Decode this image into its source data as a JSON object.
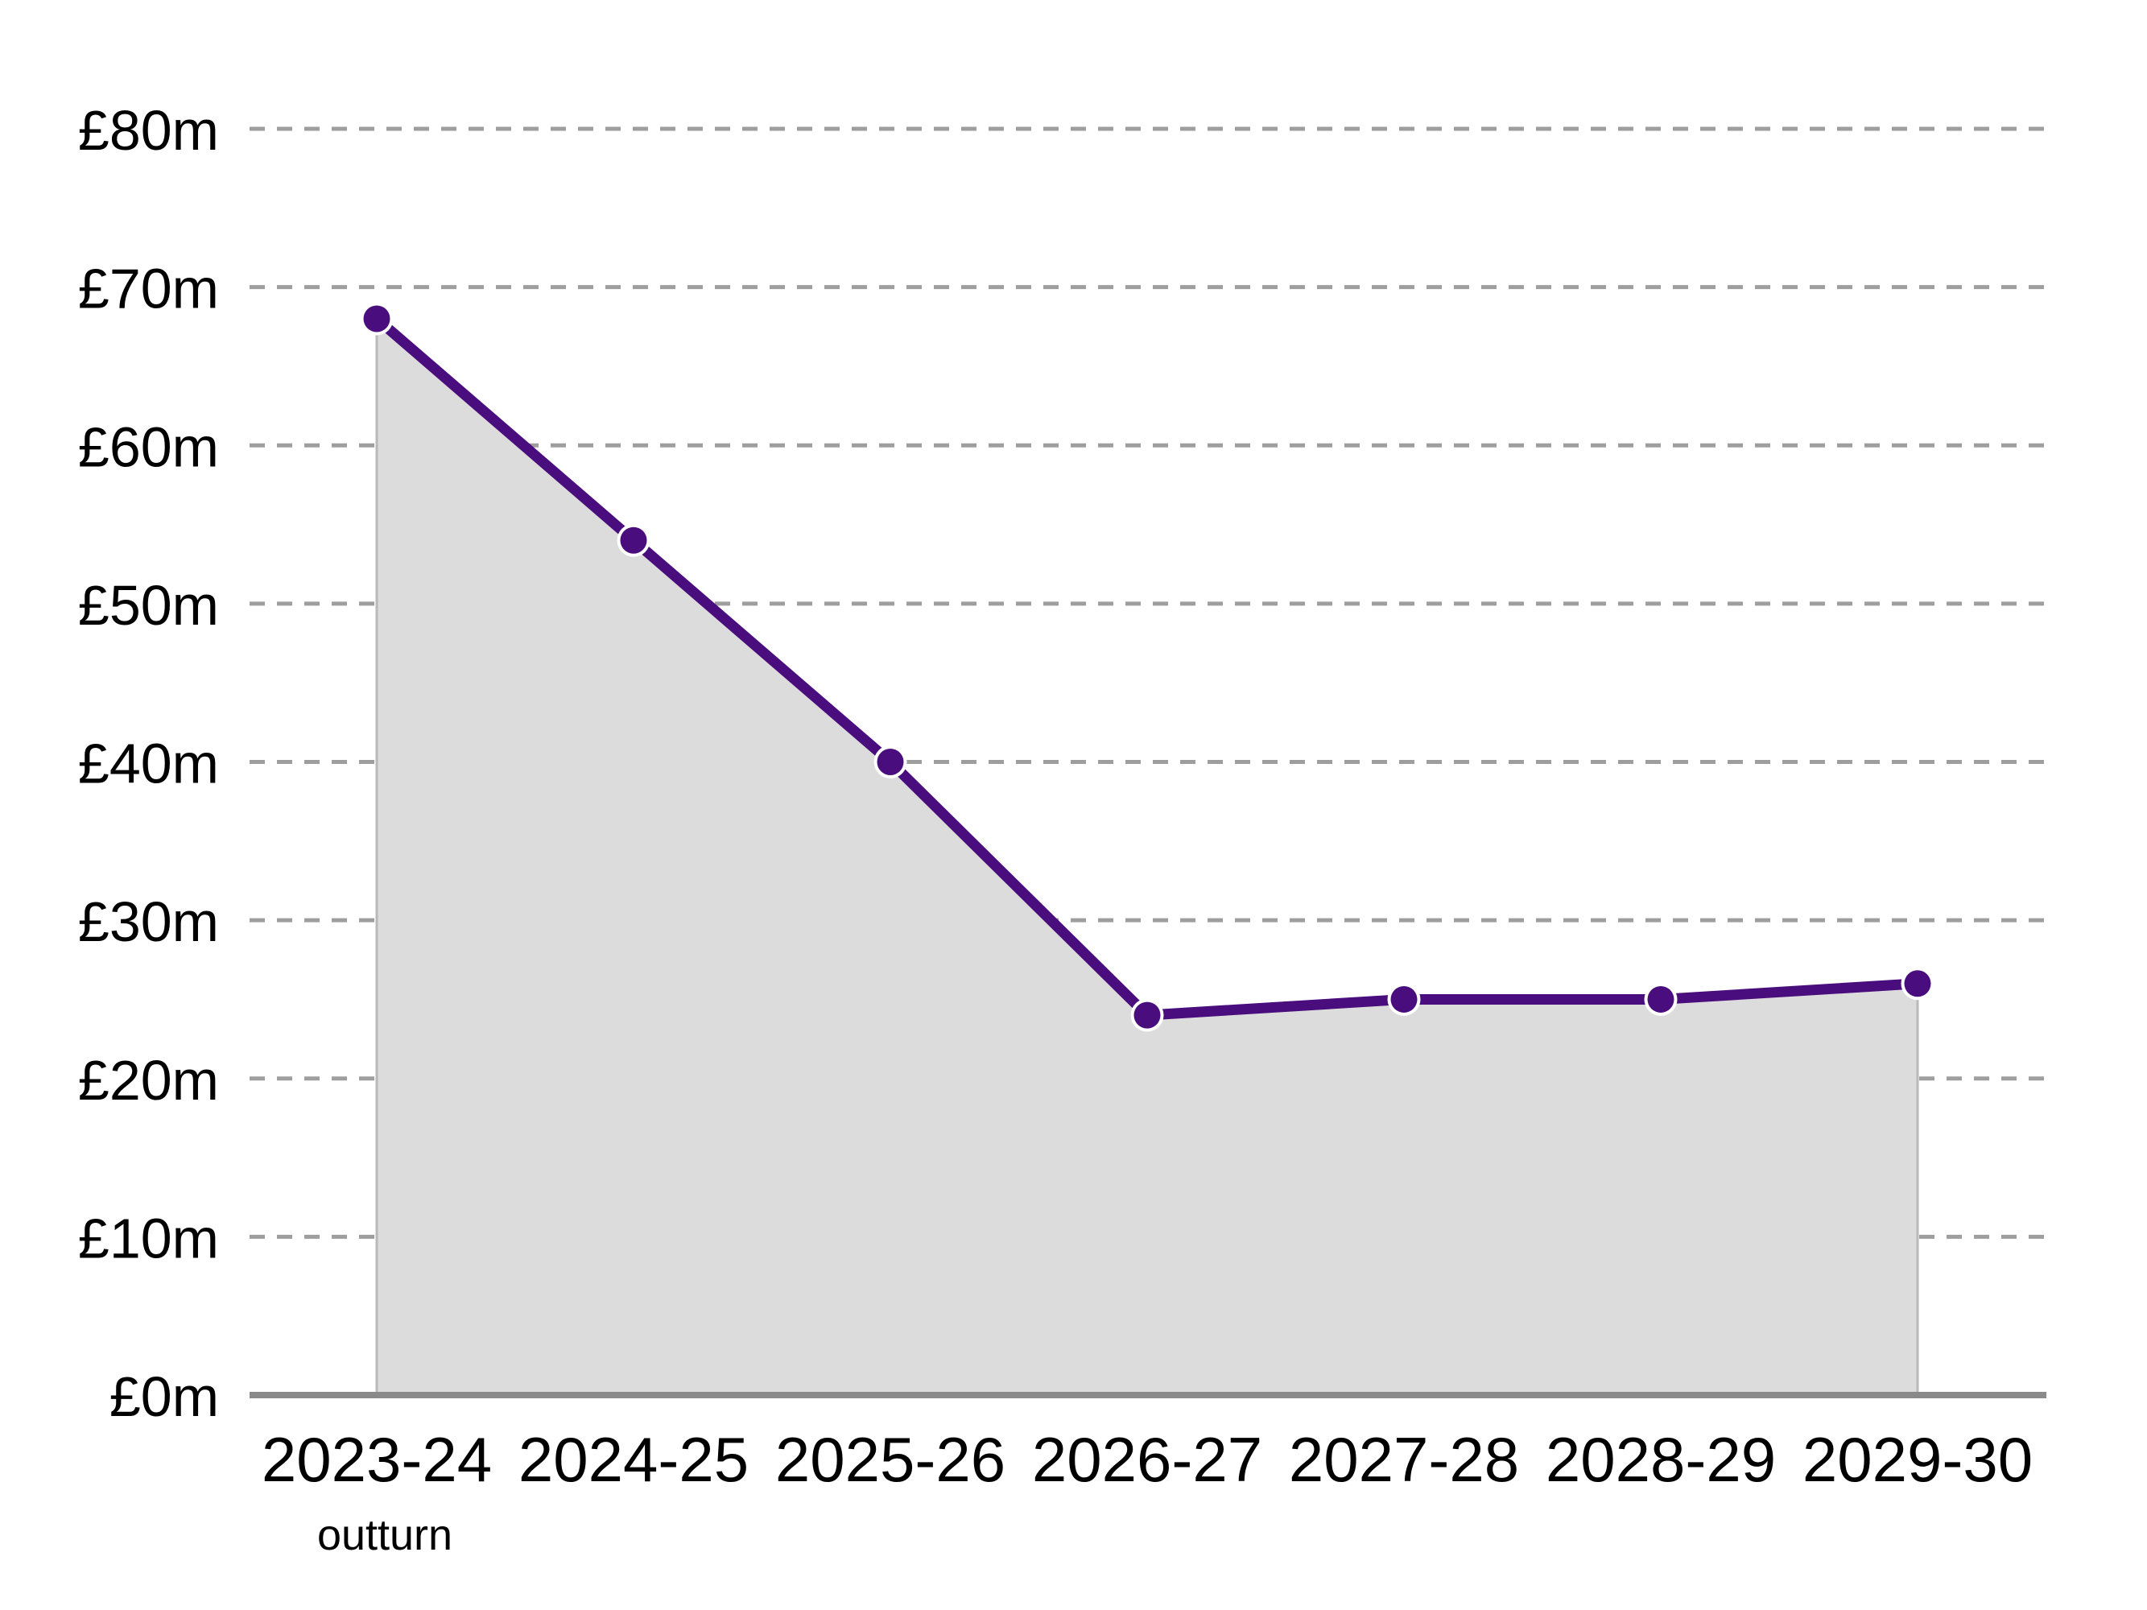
{
  "chart_data": {
    "type": "area",
    "title": "",
    "categories": [
      "2023-24",
      "2024-25",
      "2025-26",
      "2026-27",
      "2027-28",
      "2028-29",
      "2029-30"
    ],
    "x_sublabels": [
      "outturn",
      "",
      "",
      "",
      "",
      "",
      ""
    ],
    "values": [
      68,
      54,
      40,
      24,
      25,
      25,
      26
    ],
    "value_unit": "£m",
    "ylim": [
      0,
      80
    ],
    "y_ticks": [
      0,
      10,
      20,
      30,
      40,
      50,
      60,
      70,
      80
    ],
    "y_tick_labels": [
      "£0m",
      "£10m",
      "£20m",
      "£30m",
      "£40m",
      "£50m",
      "£60m",
      "£70m",
      "£80m"
    ],
    "grid": "horizontal-dashed",
    "legend": "none",
    "colors": {
      "line": "#4a0d7e",
      "marker": "#4a0d7e",
      "marker_ring": "#ffffff",
      "area_fill": "#dcdcdc",
      "area_edge": "#b9b9b9",
      "gridline": "#9e9e9e",
      "axis_line": "#8a8a8a",
      "label_text": "#000000"
    }
  }
}
